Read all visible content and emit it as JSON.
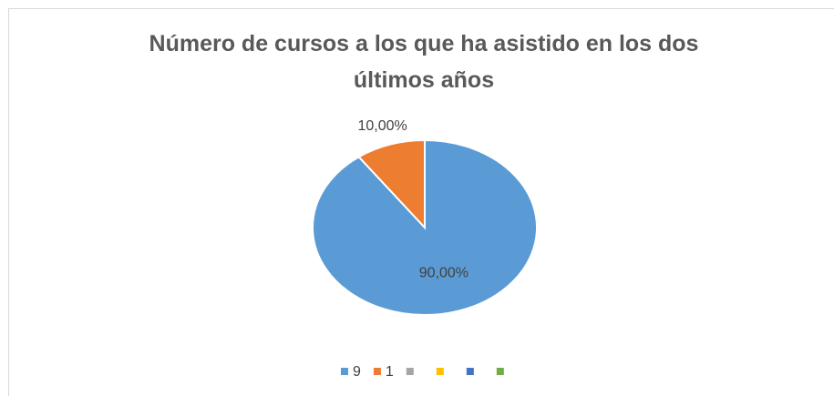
{
  "chart_data": {
    "type": "pie",
    "title": "Número de cursos a los que ha asistido en los dos últimos años",
    "categories": [
      "9",
      "1",
      null,
      null,
      null,
      null
    ],
    "values": [
      90,
      10,
      0,
      0,
      0,
      0
    ],
    "value_labels": [
      "90,00%",
      "10,00%",
      null,
      null,
      null,
      null
    ],
    "colors": [
      "#5b9bd5",
      "#ed7d31",
      "#a5a5a5",
      "#ffc000",
      "#4472c4",
      "#70ad47"
    ],
    "legend": "bottom"
  }
}
